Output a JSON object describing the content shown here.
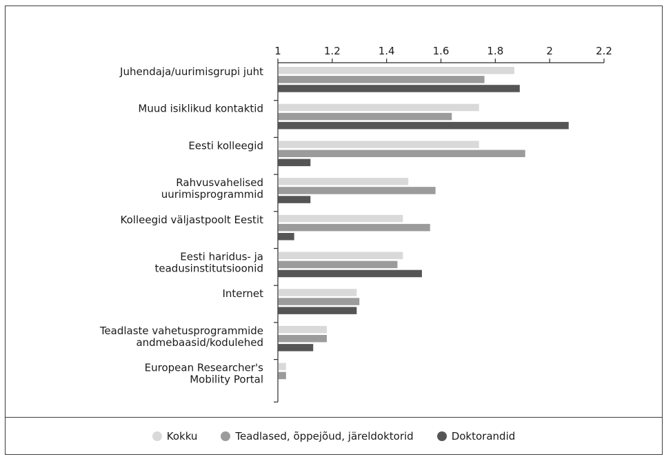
{
  "chart_data": {
    "type": "bar",
    "orientation": "horizontal",
    "categories": [
      [
        "Juhendaja/uurimisgrupi juht"
      ],
      [
        "Muud isiklikud kontaktid"
      ],
      [
        "Eesti kolleegid"
      ],
      [
        "Rahvusvahelised",
        "uurimisprogrammid"
      ],
      [
        "Kolleegid väljastpoolt Eestit"
      ],
      [
        "Eesti haridus- ja",
        "teadusinstitutsioonid"
      ],
      [
        "Internet"
      ],
      [
        "Teadlaste vahetusprogrammide",
        "andmebaasid/kodulehed"
      ],
      [
        "European Researcher's",
        "Mobility Portal"
      ]
    ],
    "series": [
      {
        "name": "Kokku",
        "color": "#d9d9d9",
        "values": [
          1.87,
          1.74,
          1.74,
          1.48,
          1.46,
          1.46,
          1.29,
          1.18,
          1.03
        ]
      },
      {
        "name": "Teadlased, õppejõud, järeldoktorid",
        "color": "#9b9b9b",
        "values": [
          1.76,
          1.64,
          1.91,
          1.58,
          1.56,
          1.44,
          1.3,
          1.18,
          1.03
        ]
      },
      {
        "name": "Doktorandid",
        "color": "#555555",
        "values": [
          1.89,
          2.07,
          1.12,
          1.12,
          1.06,
          1.53,
          1.29,
          1.13,
          null
        ]
      }
    ],
    "xticks": [
      "1",
      "1.2",
      "1.4",
      "1.6",
      "1.8",
      "2",
      "2.2"
    ],
    "xtick_values": [
      1,
      1.2,
      1.4,
      1.6,
      1.8,
      2,
      2.2
    ],
    "xlim": [
      1,
      2.2
    ],
    "grid": false,
    "legend_position": "bottom"
  }
}
